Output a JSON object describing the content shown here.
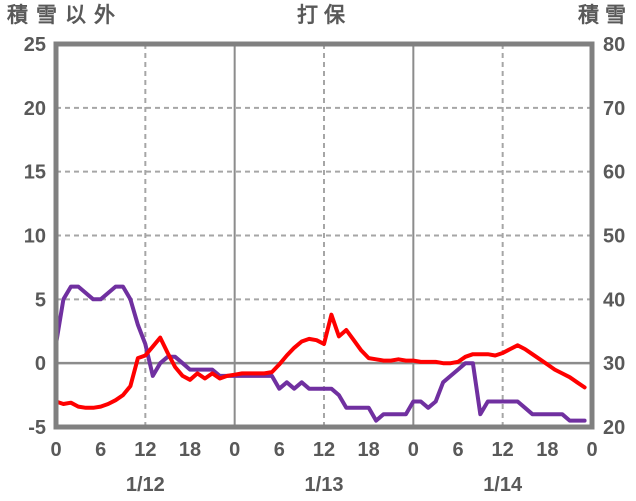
{
  "header": {
    "left_axis_title": "積雪以外",
    "title": "打保",
    "right_axis_title": "積雪"
  },
  "chart_data": {
    "type": "line",
    "title": "打保",
    "x_unit": "hours, 3 days hourly (1/12 0:00 - 1/14 23:00)",
    "x_range_hours": [
      0,
      72
    ],
    "x_tick_hours": [
      0,
      6,
      12,
      18,
      24,
      30,
      36,
      42,
      48,
      54,
      60,
      66,
      72
    ],
    "x_tick_labels": [
      "0",
      "6",
      "12",
      "18",
      "0",
      "6",
      "12",
      "18",
      "0",
      "6",
      "12",
      "18",
      "0"
    ],
    "date_labels": [
      {
        "label": "1/12",
        "hour": 12
      },
      {
        "label": "1/13",
        "hour": 36
      },
      {
        "label": "1/14",
        "hour": 60
      }
    ],
    "left_axis": {
      "title": "積雪以外",
      "min": -5,
      "max": 25,
      "ticks": [
        25,
        20,
        15,
        10,
        5,
        0,
        -5
      ]
    },
    "right_axis": {
      "title": "積雪",
      "min": 20,
      "max": 80,
      "ticks": [
        80,
        70,
        60,
        50,
        40,
        30,
        20
      ]
    },
    "gridlines": {
      "horizontal_dashed_left_values": [
        20,
        15,
        10,
        5
      ],
      "horizontal_solid_left_values": [
        0
      ],
      "vertical_dashed_hours": [
        12,
        36,
        60
      ],
      "vertical_solid_hours": [
        24,
        48
      ]
    },
    "legend": "none (series identified by axis titles)",
    "series": [
      {
        "name": "積雪以外",
        "axis": "left",
        "color": "#FF0000",
        "start_hour": 0,
        "interval_hours": 1,
        "values": [
          -3.0,
          -3.2,
          -3.1,
          -3.4,
          -3.5,
          -3.5,
          -3.4,
          -3.2,
          -2.9,
          -2.5,
          -1.8,
          0.4,
          0.6,
          1.3,
          2.0,
          0.8,
          -0.3,
          -1.0,
          -1.3,
          -0.8,
          -1.2,
          -0.8,
          -1.2,
          -1.0,
          -0.9,
          -0.8,
          -0.8,
          -0.8,
          -0.8,
          -0.7,
          -0.1,
          0.6,
          1.2,
          1.7,
          1.9,
          1.8,
          1.5,
          3.8,
          2.1,
          2.6,
          1.8,
          1.0,
          0.4,
          0.3,
          0.2,
          0.2,
          0.3,
          0.2,
          0.2,
          0.1,
          0.1,
          0.1,
          0.0,
          0.0,
          0.1,
          0.5,
          0.7,
          0.7,
          0.7,
          0.6,
          0.8,
          1.1,
          1.4,
          1.1,
          0.7,
          0.3,
          -0.1,
          -0.5,
          -0.8,
          -1.1,
          -1.5,
          -1.9
        ]
      },
      {
        "name": "積雪",
        "axis": "right",
        "color": "#7030A0",
        "start_hour": 0,
        "interval_hours": 1,
        "values": [
          33,
          40,
          42,
          42,
          41,
          40,
          40,
          41,
          42,
          42,
          40,
          36,
          33,
          28,
          30,
          31,
          31,
          30,
          29,
          29,
          29,
          29,
          28,
          28,
          28,
          28,
          28,
          28,
          28,
          28,
          26,
          27,
          26,
          27,
          26,
          26,
          26,
          26,
          25,
          23,
          23,
          23,
          23,
          21,
          22,
          22,
          22,
          22,
          24,
          24,
          23,
          24,
          27,
          28,
          29,
          30,
          30,
          22,
          24,
          24,
          24,
          24,
          24,
          23,
          22,
          22,
          22,
          22,
          22,
          21,
          21,
          21
        ]
      }
    ],
    "colors": {
      "grid_dashed": "#A6A6A6",
      "grid_solid": "#8C8C8C",
      "plot_border": "#808080",
      "text": "#595959",
      "background": "#FFFFFF"
    }
  }
}
